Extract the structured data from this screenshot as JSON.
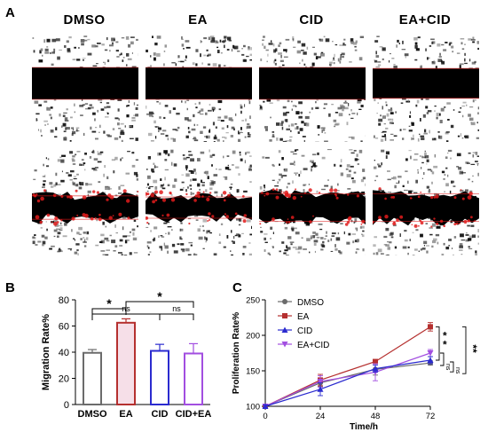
{
  "panels": {
    "a": "A",
    "b": "B",
    "c": "C"
  },
  "conditions": [
    "DMSO",
    "EA",
    "CID",
    "EA+CID"
  ],
  "wound_rows": [
    {
      "state": "initial scratch",
      "gap_fraction": [
        0.3,
        0.3,
        0.3,
        0.28
      ]
    },
    {
      "state": "after migration",
      "gap_fraction": [
        0.22,
        0.2,
        0.26,
        0.26
      ]
    }
  ],
  "colors": {
    "dmso": "#6b6b6b",
    "ea": "#b5302f",
    "cid": "#2b2bcf",
    "ea_cid": "#a24ee0",
    "bar_fill_pink": "#f6dfe8",
    "wound_edge": "#e01b1b"
  },
  "chart_data": [
    {
      "type": "bar",
      "panel": "B",
      "title": "",
      "xlabel": "",
      "ylabel": "Migration Rate%",
      "categories": [
        "DMSO",
        "EA",
        "CID",
        "CID+EA"
      ],
      "values": [
        39.5,
        62.5,
        41,
        39
      ],
      "errors": [
        2.5,
        3,
        5,
        7.5
      ],
      "ylim": [
        0,
        80
      ],
      "yticks": [
        0,
        20,
        40,
        60,
        80
      ],
      "significance": [
        {
          "from": "DMSO",
          "to": "EA",
          "label": "*"
        },
        {
          "from": "DMSO",
          "to": "CID",
          "label": "ns"
        },
        {
          "from": "EA",
          "to": "CID+EA",
          "label": "*"
        },
        {
          "from": "CID",
          "to": "CID+EA",
          "label": "ns"
        }
      ]
    },
    {
      "type": "line",
      "panel": "C",
      "title": "",
      "xlabel": "Time/h",
      "ylabel": "Proliferation Rate%",
      "x": [
        0,
        24,
        48,
        72
      ],
      "xlim": [
        0,
        72
      ],
      "xticks": [
        0,
        24,
        48,
        72
      ],
      "ylim": [
        100,
        250
      ],
      "yticks": [
        100,
        150,
        200,
        250
      ],
      "legend_position": "top-left",
      "series": [
        {
          "name": "DMSO",
          "marker": "circle",
          "values": [
            100,
            133,
            152,
            161
          ],
          "errors": [
            2,
            5,
            8,
            3
          ]
        },
        {
          "name": "EA",
          "marker": "square",
          "values": [
            100,
            137,
            163,
            212
          ],
          "errors": [
            2,
            8,
            3,
            6
          ]
        },
        {
          "name": "EA+CID",
          "marker": "triangle-down",
          "values": [
            100,
            135,
            148,
            175
          ],
          "errors": [
            2,
            8,
            12,
            5
          ]
        },
        {
          "name": "CID",
          "marker": "triangle-up",
          "values": [
            100,
            124,
            153,
            165
          ],
          "errors": [
            2,
            9,
            5,
            5
          ]
        }
      ],
      "significance": [
        {
          "label": "*",
          "group": "EA vs CID"
        },
        {
          "label": "*",
          "group": "EA vs CID"
        },
        {
          "label": "ns",
          "group": "CID vs EA+CID"
        },
        {
          "label": "ns",
          "group": "DMSO vs CID"
        },
        {
          "label": "**",
          "group": "EA vs DMSO"
        }
      ]
    }
  ]
}
